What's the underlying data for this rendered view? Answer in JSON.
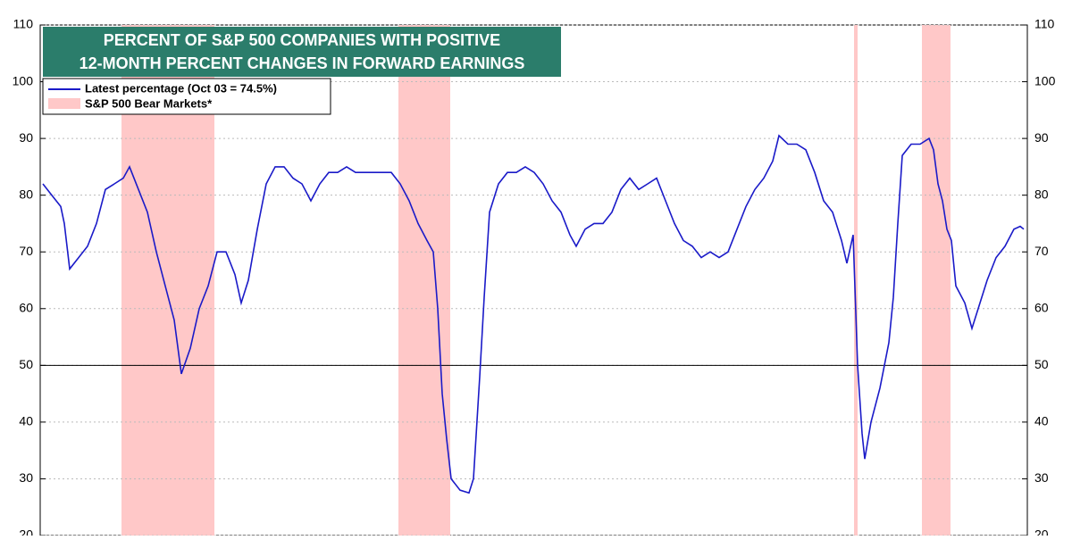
{
  "chart_data": {
    "type": "line",
    "title_lines": [
      "PERCENT OF S&P 500 COMPANIES WITH POSITIVE",
      "12-MONTH PERCENT CHANGES IN FORWARD EARNINGS"
    ],
    "x": [
      0,
      10,
      20,
      24,
      30,
      40,
      50,
      60,
      70,
      80,
      90,
      97,
      107,
      117,
      127,
      137,
      147,
      155,
      165,
      175,
      185,
      195,
      205,
      215,
      222,
      230,
      240,
      250,
      260,
      270,
      280,
      290,
      300,
      310,
      320,
      330,
      340,
      350,
      360,
      370,
      380,
      390,
      400,
      410,
      420,
      430,
      437,
      442,
      447,
      452,
      457,
      467,
      477,
      482,
      489,
      494,
      500,
      510,
      520,
      530,
      540,
      550,
      560,
      570,
      580,
      590,
      597,
      607,
      617,
      627,
      637,
      647,
      657,
      667,
      677,
      687,
      697,
      707,
      717,
      727,
      737,
      747,
      757,
      767,
      777,
      787,
      797,
      807,
      817,
      824,
      834,
      844,
      854,
      864,
      874,
      884,
      894,
      900,
      907,
      912,
      917,
      920,
      927,
      937,
      947,
      952,
      957,
      962,
      972,
      982,
      992,
      997,
      1002,
      1007,
      1012,
      1017,
      1022,
      1032,
      1040,
      1047,
      1057,
      1067,
      1077,
      1087,
      1094,
      1098
    ],
    "series": [
      {
        "name": "Latest percentage (Oct 03 = 74.5%)",
        "color": "#1a1ac8",
        "values": [
          82,
          80,
          78,
          75,
          67,
          69,
          71,
          75,
          81,
          82,
          83,
          85,
          81,
          77,
          70,
          64,
          58,
          48.5,
          53,
          60,
          64,
          70,
          70,
          66,
          61,
          65,
          74,
          82,
          85,
          85,
          83,
          82,
          79,
          82,
          84,
          84,
          85,
          84,
          84,
          84,
          84,
          84,
          82,
          79,
          75,
          72,
          70,
          60,
          45,
          37,
          30,
          28,
          27.5,
          30,
          48,
          62,
          77,
          82,
          84,
          84,
          85,
          84,
          82,
          79,
          77,
          73,
          71,
          74,
          75,
          75,
          77,
          81,
          83,
          81,
          82,
          83,
          79,
          75,
          72,
          71,
          69,
          70,
          69,
          70,
          74,
          78,
          81,
          83,
          86,
          90.5,
          89,
          89,
          88,
          84,
          79,
          77,
          72,
          68,
          73,
          50,
          38,
          33.5,
          40,
          46,
          54,
          62,
          75,
          87,
          89,
          89,
          90,
          88,
          82,
          79,
          74,
          72,
          64,
          61,
          56.5,
          60,
          65,
          69,
          71,
          74,
          74.5,
          74
        ]
      }
    ],
    "shaded_regions": {
      "name": "S&P 500 Bear Markets*",
      "color": "#ffc8c8",
      "spans": [
        [
          88,
          192
        ],
        [
          398,
          456
        ],
        [
          908,
          912
        ],
        [
          984,
          1016
        ]
      ]
    },
    "reference_line": 50,
    "xlim": [
      -3,
      1102
    ],
    "ylim": [
      20,
      110
    ],
    "yticks": [
      20,
      30,
      40,
      50,
      60,
      70,
      80,
      90,
      100,
      110
    ],
    "grid": true
  }
}
